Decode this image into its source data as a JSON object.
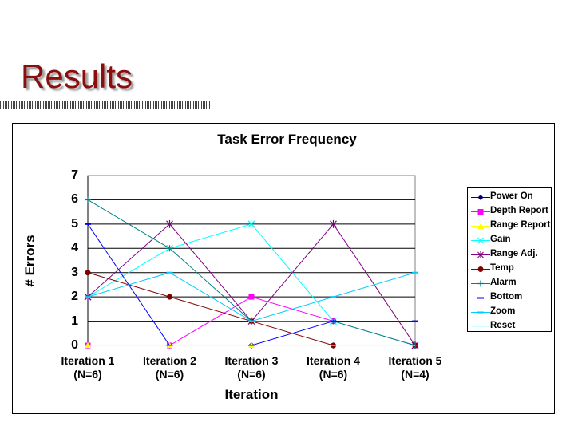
{
  "slide": {
    "title": "Results"
  },
  "chart_data": {
    "type": "line",
    "title": "Task Error Frequency",
    "xlabel": "Iteration",
    "ylabel": "# Errors",
    "ylim": [
      0,
      7
    ],
    "yticks": [
      "0",
      "1",
      "2",
      "3",
      "4",
      "5",
      "6",
      "7"
    ],
    "grid": "horizontal",
    "legend_position": "right",
    "categories": [
      {
        "line1": "Iteration 1",
        "line2": "(N=6)"
      },
      {
        "line1": "Iteration 2",
        "line2": "(N=6)"
      },
      {
        "line1": "Iteration 3",
        "line2": "(N=6)"
      },
      {
        "line1": "Iteration 4",
        "line2": "(N=6)"
      },
      {
        "line1": "Iteration 5",
        "line2": "(N=4)"
      }
    ],
    "series": [
      {
        "name": "Power On",
        "values": [
          0,
          0,
          0,
          0,
          0
        ],
        "color": "#000080",
        "marker": "diamond"
      },
      {
        "name": "Depth Report",
        "values": [
          0,
          0,
          2,
          1,
          0
        ],
        "color": "#ff00ff",
        "marker": "square"
      },
      {
        "name": "Range Report",
        "values": [
          0,
          0,
          0,
          0,
          0
        ],
        "color": "#ffff00",
        "marker": "triangle"
      },
      {
        "name": "Gain",
        "values": [
          2,
          4,
          5,
          1,
          0
        ],
        "color": "#00ffff",
        "marker": "x"
      },
      {
        "name": "Range Adj.",
        "values": [
          2,
          5,
          1,
          5,
          0
        ],
        "color": "#800080",
        "marker": "star"
      },
      {
        "name": "Temp",
        "values": [
          3,
          2,
          1,
          0,
          0
        ],
        "color": "#800000",
        "marker": "circle"
      },
      {
        "name": "Alarm",
        "values": [
          6,
          4,
          1,
          1,
          0
        ],
        "color": "#008080",
        "marker": "plus"
      },
      {
        "name": "Bottom",
        "values": [
          5,
          0,
          0,
          1,
          1
        ],
        "color": "#0000ff",
        "marker": "dash"
      },
      {
        "name": "Zoom",
        "values": [
          2,
          3,
          1,
          2,
          3
        ],
        "color": "#00ccff",
        "marker": "dash"
      },
      {
        "name": "Reset",
        "values": [
          0,
          0,
          0,
          0,
          0
        ],
        "color": "#ccffff",
        "marker": "none"
      }
    ]
  }
}
